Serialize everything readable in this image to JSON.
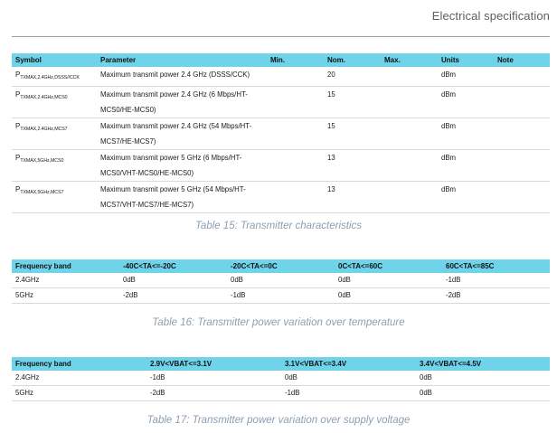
{
  "header": {
    "title": "Electrical specification"
  },
  "table15": {
    "headers": [
      "Symbol",
      "Parameter",
      "Min.",
      "Nom.",
      "Max.",
      "Units",
      "Note"
    ],
    "rows": [
      {
        "symbol_main": "P",
        "symbol_sub": "TXMAX,2.4GHz,DSSS//CCK",
        "parameter": "Maximum transmit power 2.4 GHz (DSSS/CCK)",
        "min": "",
        "nom": "20",
        "max": "",
        "units": "dBm",
        "note": ""
      },
      {
        "symbol_main": "P",
        "symbol_sub": "TXMAX,2.4GHz,MCS0",
        "parameter": "Maximum transmit power 2.4 GHz (6 Mbps/HT-MCS0/HE-MCS0)",
        "min": "",
        "nom": "15",
        "max": "",
        "units": "dBm",
        "note": ""
      },
      {
        "symbol_main": "P",
        "symbol_sub": "TXMAX,2.4GHz,MCS7",
        "parameter": "Maximum transmit power 2.4 GHz (54 Mbps/HT-MCS7/HE-MCS7)",
        "min": "",
        "nom": "15",
        "max": "",
        "units": "dBm",
        "note": ""
      },
      {
        "symbol_main": "P",
        "symbol_sub": "TXMAX,5GHz,MCS0",
        "parameter": "Maximum transmit power 5 GHz (6 Mbps/HT-MCS0/VHT-MCS0/HE-MCS0)",
        "min": "",
        "nom": "13",
        "max": "",
        "units": "dBm",
        "note": ""
      },
      {
        "symbol_main": "P",
        "symbol_sub": "TXMAX,5GHz,MCS7",
        "parameter": "Maximum transmit power 5 GHz (54 Mbps/HT-MCS7/VHT-MCS7/HE-MCS7)",
        "min": "",
        "nom": "13",
        "max": "",
        "units": "dBm",
        "note": ""
      }
    ],
    "caption": "Table 15: Transmitter characteristics"
  },
  "table16": {
    "headers": [
      "Frequency band",
      "-40C<TA<=-20C",
      "-20C<TA<=0C",
      "0C<TA<=60C",
      "60C<TA<=85C"
    ],
    "rows": [
      [
        "2.4GHz",
        "0dB",
        "0dB",
        "0dB",
        "-1dB"
      ],
      [
        "5GHz",
        "-2dB",
        "-1dB",
        "0dB",
        "-2dB"
      ]
    ],
    "caption": "Table 16: Transmitter power variation over temperature"
  },
  "table17": {
    "headers": [
      "Frequency band",
      "2.9V<VBAT<=3.1V",
      "3.1V<VBAT<=3.4V",
      "3.4V<VBAT<=4.5V"
    ],
    "rows": [
      [
        "2.4GHz",
        "-1dB",
        "0dB",
        "0dB"
      ],
      [
        "5GHz",
        "-2dB",
        "-1dB",
        "0dB"
      ]
    ],
    "caption": "Table 17: Transmitter power variation over supply voltage"
  }
}
